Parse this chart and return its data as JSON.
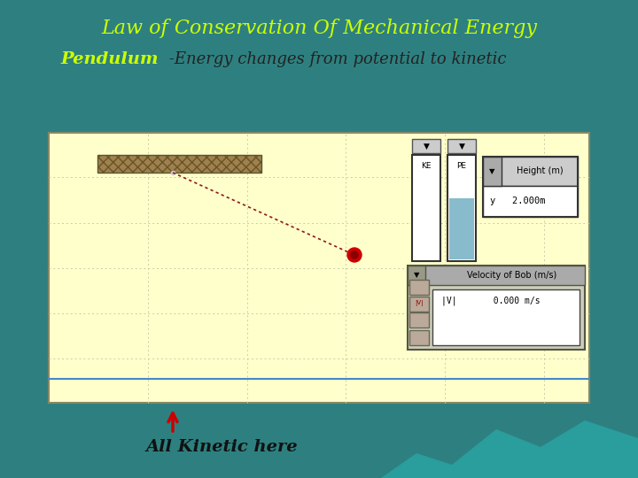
{
  "title": "Law of Conservation Of Mechanical Energy",
  "subtitle_bold": "Pendulum",
  "subtitle_italic": " -Energy changes from potential to kinetic",
  "bg_color": "#2e8080",
  "sim_bg": "#ffffcc",
  "title_color": "#ccff00",
  "subtitle_bold_color": "#ccff00",
  "subtitle_italic_color": "#222222",
  "bottom_text": "All Kinetic here",
  "arrow_color": "#cc0000",
  "grid_color": "#ccccaa",
  "support_hatch_color": "#665522",
  "support_face": "#a08050",
  "line_color": "#8b1a1a",
  "bob_color": "#cc0000",
  "bob_dark": "#880000",
  "water_color": "#88bbcc"
}
